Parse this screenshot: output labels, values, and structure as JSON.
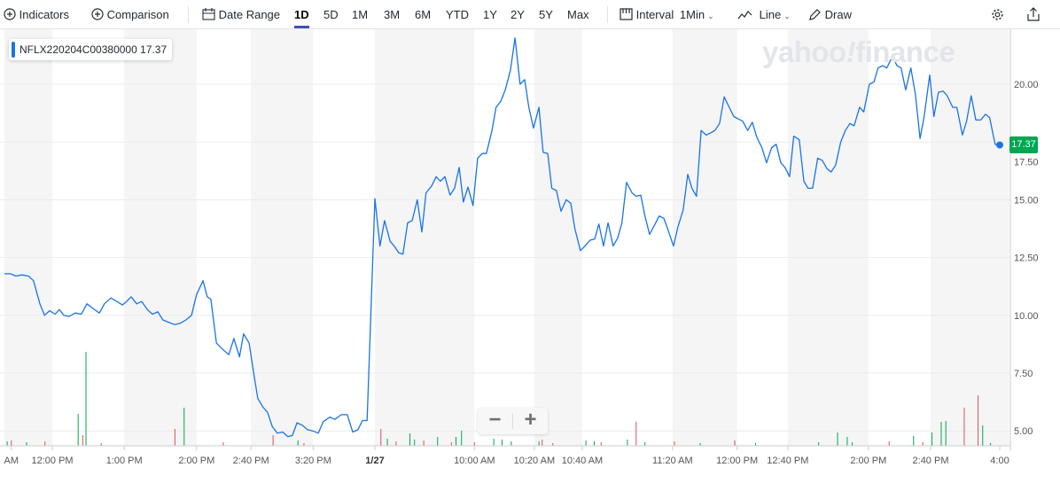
{
  "toolbar": {
    "indicators_label": "Indicators",
    "comparison_label": "Comparison",
    "date_range_label": "Date Range",
    "ranges": [
      "1D",
      "5D",
      "1M",
      "3M",
      "6M",
      "YTD",
      "1Y",
      "2Y",
      "5Y",
      "Max"
    ],
    "active_range": "1D",
    "interval_label": "Interval",
    "interval_value": "1Min",
    "chart_type_label": "Line",
    "draw_label": "Draw",
    "icons": [
      "plus-circle-icon",
      "calendar-icon",
      "interval-icon",
      "line-chart-icon",
      "pencil-icon",
      "gear-icon",
      "share-icon"
    ]
  },
  "legend": {
    "symbol": "NFLX220204C00380000",
    "value": "17.37"
  },
  "watermark": "yahoo!finance",
  "zoom_controls": {
    "minus": "−",
    "plus": "+"
  },
  "last_price_badge": "17.37",
  "colors": {
    "line": "#1a73e8",
    "up": "#00a651",
    "down": "#d9534f",
    "band": "#f5f5f5",
    "accent": "#4250b9"
  },
  "chart_data": {
    "type": "line",
    "title": "NFLX220204C00380000",
    "ylim": [
      4.5,
      23.2
    ],
    "xlim": [
      0,
      218
    ],
    "y_ticks": [
      "5.00",
      "7.50",
      "10.00",
      "12.50",
      "15.00",
      "17.50",
      "20.00"
    ],
    "y_tick_values": [
      5,
      7.5,
      10,
      12.5,
      15,
      17.5,
      20
    ],
    "x_ticks": [
      {
        "t": 1.5,
        "label": "AM"
      },
      {
        "t": 10.4,
        "label": "12:00 PM"
      },
      {
        "t": 26,
        "label": "1:00 PM"
      },
      {
        "t": 41.7,
        "label": "2:00 PM"
      },
      {
        "t": 53.5,
        "label": "2:40 PM"
      },
      {
        "t": 67,
        "label": "3:20 PM"
      },
      {
        "t": 80.4,
        "label": "1/27",
        "bold": true
      },
      {
        "t": 102,
        "label": "10:00 AM"
      },
      {
        "t": 115,
        "label": "10:20 AM"
      },
      {
        "t": 125.4,
        "label": "10:40 AM"
      },
      {
        "t": 145,
        "label": "11:20 AM"
      },
      {
        "t": 159,
        "label": "12:00 PM"
      },
      {
        "t": 170,
        "label": "12:40 PM"
      },
      {
        "t": 187.5,
        "label": "2:00 PM"
      },
      {
        "t": 201,
        "label": "2:40 PM"
      },
      {
        "t": 216,
        "label": "4:00"
      }
    ],
    "bands": [
      [
        0,
        10.4
      ],
      [
        26,
        41.7
      ],
      [
        53.5,
        67
      ],
      [
        80.4,
        102
      ],
      [
        115,
        125.4
      ],
      [
        145,
        159
      ],
      [
        170,
        187.5
      ],
      [
        201,
        218
      ]
    ],
    "grid": true,
    "series": [
      {
        "name": "NFLX220204C00380000",
        "points": [
          [
            0,
            11.8
          ],
          [
            1.3,
            11.8
          ],
          [
            2.5,
            11.7
          ],
          [
            3.8,
            11.75
          ],
          [
            5.2,
            11.7
          ],
          [
            6.3,
            11.5
          ],
          [
            7.7,
            10.5
          ],
          [
            8.7,
            10.0
          ],
          [
            9.8,
            10.2
          ],
          [
            11,
            10.05
          ],
          [
            11.9,
            10.25
          ],
          [
            12.9,
            10.0
          ],
          [
            14,
            9.95
          ],
          [
            15.4,
            10.1
          ],
          [
            16.7,
            10.05
          ],
          [
            17.9,
            10.5
          ],
          [
            19.2,
            10.3
          ],
          [
            20.6,
            10.1
          ],
          [
            21.7,
            10.5
          ],
          [
            23.1,
            10.75
          ],
          [
            24.4,
            10.6
          ],
          [
            25.6,
            10.45
          ],
          [
            26.5,
            10.6
          ],
          [
            27.5,
            10.8
          ],
          [
            28.7,
            10.5
          ],
          [
            29.8,
            10.6
          ],
          [
            31,
            10.25
          ],
          [
            32.1,
            10.05
          ],
          [
            33.3,
            10.15
          ],
          [
            34.4,
            9.8
          ],
          [
            35.6,
            9.7
          ],
          [
            36.9,
            9.6
          ],
          [
            38.1,
            9.65
          ],
          [
            39.4,
            9.8
          ],
          [
            40.6,
            10.0
          ],
          [
            41.7,
            10.9
          ],
          [
            43.1,
            11.5
          ],
          [
            44,
            10.8
          ],
          [
            44.8,
            10.7
          ],
          [
            46,
            8.8
          ],
          [
            47.5,
            8.5
          ],
          [
            48.7,
            8.3
          ],
          [
            49.8,
            9.0
          ],
          [
            51,
            8.2
          ],
          [
            51.9,
            9.2
          ],
          [
            53.1,
            8.8
          ],
          [
            54,
            7.6
          ],
          [
            55,
            6.4
          ],
          [
            56.2,
            6.0
          ],
          [
            57.1,
            5.8
          ],
          [
            58.1,
            5.2
          ],
          [
            59.2,
            4.9
          ],
          [
            60.4,
            4.95
          ],
          [
            61.5,
            4.75
          ],
          [
            62.5,
            4.8
          ],
          [
            63.5,
            5.35
          ],
          [
            64.6,
            5.25
          ],
          [
            65.8,
            5.05
          ],
          [
            66.9,
            5.0
          ],
          [
            68.1,
            4.9
          ],
          [
            69.2,
            5.4
          ],
          [
            70.6,
            5.6
          ],
          [
            71.7,
            5.5
          ],
          [
            73.1,
            5.7
          ],
          [
            74.4,
            5.7
          ],
          [
            75.6,
            4.95
          ],
          [
            76.7,
            5.05
          ],
          [
            77.7,
            5.45
          ],
          [
            78.7,
            5.45
          ],
          [
            80.4,
            15.05
          ],
          [
            81.5,
            13.0
          ],
          [
            82.5,
            14.1
          ],
          [
            83.7,
            13.2
          ],
          [
            84.6,
            13.0
          ],
          [
            85.6,
            12.7
          ],
          [
            86.5,
            12.65
          ],
          [
            87.5,
            14.0
          ],
          [
            88.5,
            14.1
          ],
          [
            89.6,
            15.0
          ],
          [
            90.6,
            13.6
          ],
          [
            91.5,
            15.3
          ],
          [
            92.7,
            15.6
          ],
          [
            93.7,
            16.0
          ],
          [
            94.6,
            15.8
          ],
          [
            95.6,
            16.0
          ],
          [
            96.7,
            15.2
          ],
          [
            97.7,
            15.5
          ],
          [
            98.7,
            16.4
          ],
          [
            99.6,
            14.9
          ],
          [
            100.6,
            15.55
          ],
          [
            101.7,
            14.75
          ],
          [
            102.7,
            16.8
          ],
          [
            103.7,
            17.0
          ],
          [
            104.6,
            17.0
          ],
          [
            105.8,
            18.0
          ],
          [
            106.7,
            19.0
          ],
          [
            107.7,
            19.25
          ],
          [
            108.7,
            19.75
          ],
          [
            109.8,
            20.6
          ],
          [
            110.8,
            22.0
          ],
          [
            111.9,
            20.0
          ],
          [
            112.9,
            20.2
          ],
          [
            113.8,
            19.0
          ],
          [
            114.8,
            18.1
          ],
          [
            116,
            19.0
          ],
          [
            116.9,
            17.05
          ],
          [
            117.9,
            17.0
          ],
          [
            118.8,
            15.5
          ],
          [
            119.8,
            15.4
          ],
          [
            120.8,
            14.5
          ],
          [
            121.9,
            15.0
          ],
          [
            122.9,
            14.85
          ],
          [
            123.8,
            13.75
          ],
          [
            125,
            12.8
          ],
          [
            126,
            13.0
          ],
          [
            127.1,
            13.25
          ],
          [
            128.1,
            13.3
          ],
          [
            129,
            13.95
          ],
          [
            130,
            13.0
          ],
          [
            131,
            14.0
          ],
          [
            132.1,
            13.0
          ],
          [
            133.1,
            13.35
          ],
          [
            134,
            14.0
          ],
          [
            135,
            15.75
          ],
          [
            136.2,
            15.3
          ],
          [
            137.1,
            15.15
          ],
          [
            138.1,
            15.2
          ],
          [
            139,
            14.3
          ],
          [
            140,
            13.5
          ],
          [
            141.2,
            13.95
          ],
          [
            142.1,
            14.3
          ],
          [
            143.1,
            14.2
          ],
          [
            144,
            13.7
          ],
          [
            145.2,
            13.0
          ],
          [
            146.2,
            13.85
          ],
          [
            147.3,
            14.55
          ],
          [
            148.3,
            16.1
          ],
          [
            149.2,
            15.5
          ],
          [
            150.2,
            15.15
          ],
          [
            151.2,
            18.0
          ],
          [
            152.3,
            17.8
          ],
          [
            153.3,
            17.9
          ],
          [
            154.2,
            18.0
          ],
          [
            155.2,
            18.3
          ],
          [
            156.2,
            19.45
          ],
          [
            157.3,
            19.0
          ],
          [
            158.3,
            18.6
          ],
          [
            159.2,
            18.5
          ],
          [
            160.2,
            18.4
          ],
          [
            161.3,
            18.0
          ],
          [
            162.3,
            18.35
          ],
          [
            163.3,
            17.7
          ],
          [
            164.4,
            17.25
          ],
          [
            165.4,
            16.6
          ],
          [
            166.5,
            17.25
          ],
          [
            167.5,
            17.4
          ],
          [
            168.5,
            16.6
          ],
          [
            169.4,
            16.4
          ],
          [
            170.4,
            16.0
          ],
          [
            171.3,
            17.75
          ],
          [
            172.5,
            17.6
          ],
          [
            173.5,
            15.8
          ],
          [
            174.4,
            15.5
          ],
          [
            175.4,
            15.5
          ],
          [
            176.5,
            16.8
          ],
          [
            177.5,
            16.7
          ],
          [
            178.5,
            16.35
          ],
          [
            179.4,
            16.2
          ],
          [
            180.4,
            16.5
          ],
          [
            181.5,
            17.5
          ],
          [
            182.5,
            18.0
          ],
          [
            183.5,
            18.3
          ],
          [
            184.4,
            18.2
          ],
          [
            185.6,
            19.0
          ],
          [
            186.5,
            18.8
          ],
          [
            187.7,
            20.0
          ],
          [
            188.7,
            20.1
          ],
          [
            189.6,
            20.7
          ],
          [
            190.6,
            20.8
          ],
          [
            191.5,
            20.7
          ],
          [
            192.7,
            21.2
          ],
          [
            193.7,
            20.8
          ],
          [
            194.6,
            20.7
          ],
          [
            195.6,
            19.75
          ],
          [
            196.7,
            20.7
          ],
          [
            197.7,
            19.55
          ],
          [
            198.7,
            17.65
          ],
          [
            199.6,
            18.6
          ],
          [
            200.8,
            20.4
          ],
          [
            201.7,
            18.6
          ],
          [
            202.7,
            19.65
          ],
          [
            203.7,
            19.7
          ],
          [
            204.6,
            19.5
          ],
          [
            205.8,
            19.0
          ],
          [
            206.7,
            19.0
          ],
          [
            207.9,
            17.8
          ],
          [
            208.8,
            18.4
          ],
          [
            209.8,
            19.5
          ],
          [
            210.8,
            18.45
          ],
          [
            211.9,
            18.45
          ],
          [
            212.9,
            18.7
          ],
          [
            213.8,
            18.55
          ],
          [
            215,
            17.4
          ],
          [
            216,
            17.37
          ]
        ]
      }
    ],
    "volume": [
      [
        0.6,
        5,
        "up"
      ],
      [
        1.5,
        6,
        "down"
      ],
      [
        4.8,
        4,
        "up"
      ],
      [
        8.8,
        5,
        "down"
      ],
      [
        16,
        36,
        "up"
      ],
      [
        17,
        12,
        "down"
      ],
      [
        17.7,
        106,
        "up"
      ],
      [
        21,
        3,
        "down"
      ],
      [
        37,
        19,
        "down"
      ],
      [
        39,
        43,
        "up"
      ],
      [
        47.5,
        4,
        "down"
      ],
      [
        58.3,
        12,
        "down"
      ],
      [
        63.7,
        6,
        "up"
      ],
      [
        65,
        3,
        "down"
      ],
      [
        81.7,
        19,
        "down"
      ],
      [
        83.1,
        8,
        "up"
      ],
      [
        85,
        5,
        "down"
      ],
      [
        88,
        14,
        "up"
      ],
      [
        89,
        7,
        "up"
      ],
      [
        91,
        6,
        "down"
      ],
      [
        94,
        10,
        "up"
      ],
      [
        97,
        4,
        "down"
      ],
      [
        98,
        10,
        "up"
      ],
      [
        99.2,
        17,
        "up"
      ],
      [
        102,
        4,
        "down"
      ],
      [
        106.2,
        8,
        "up"
      ],
      [
        108,
        7,
        "up"
      ],
      [
        110,
        5,
        "up"
      ],
      [
        116,
        5,
        "up"
      ],
      [
        116.7,
        7,
        "down"
      ],
      [
        119,
        3,
        "down"
      ],
      [
        126.2,
        6,
        "up"
      ],
      [
        128,
        5,
        "up"
      ],
      [
        129.5,
        4,
        "down"
      ],
      [
        135.2,
        7,
        "up"
      ],
      [
        137.1,
        27,
        "down"
      ],
      [
        139,
        4,
        "up"
      ],
      [
        145.4,
        5,
        "down"
      ],
      [
        151,
        3,
        "up"
      ],
      [
        158.5,
        5,
        "down"
      ],
      [
        158.5,
        6,
        "down"
      ],
      [
        163,
        3,
        "up"
      ],
      [
        176.7,
        4,
        "up"
      ],
      [
        180.8,
        15,
        "up"
      ],
      [
        182.9,
        10,
        "up"
      ],
      [
        184,
        4,
        "up"
      ],
      [
        192,
        5,
        "down"
      ],
      [
        197.3,
        11,
        "up"
      ],
      [
        199.3,
        4,
        "down"
      ],
      [
        201.3,
        15,
        "up"
      ],
      [
        203.3,
        27,
        "up"
      ],
      [
        204.3,
        28,
        "up"
      ],
      [
        208.3,
        43,
        "down"
      ],
      [
        211.3,
        57,
        "down"
      ],
      [
        212.3,
        23,
        "up"
      ],
      [
        214,
        3,
        "up"
      ]
    ]
  }
}
